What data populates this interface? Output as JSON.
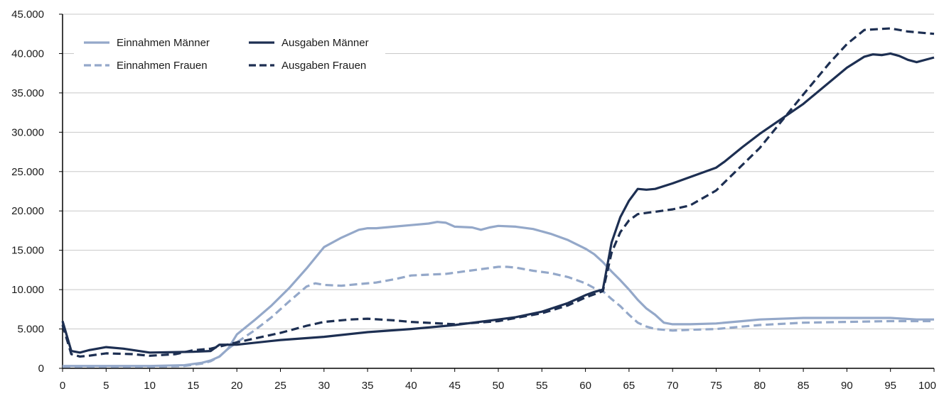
{
  "chart_data": {
    "type": "line",
    "title": "",
    "xlabel": "",
    "ylabel": "",
    "xlim": [
      0,
      100
    ],
    "ylim": [
      0,
      45000
    ],
    "grid": "horizontal",
    "legend_placement": "top-left",
    "x_ticks": [
      0,
      5,
      10,
      15,
      20,
      25,
      30,
      35,
      40,
      45,
      50,
      55,
      60,
      65,
      70,
      75,
      80,
      85,
      90,
      95,
      100
    ],
    "x_tick_labels": [
      "0",
      "5",
      "10",
      "15",
      "20",
      "25",
      "30",
      "35",
      "40",
      "45",
      "50",
      "55",
      "60",
      "65",
      "70",
      "75",
      "80",
      "85",
      "90",
      "95",
      "100"
    ],
    "y_ticks": [
      0,
      5000,
      10000,
      15000,
      20000,
      25000,
      30000,
      35000,
      40000,
      45000
    ],
    "y_tick_labels": [
      "0",
      "5.000",
      "10.000",
      "15.000",
      "20.000",
      "25.000",
      "30.000",
      "35.000",
      "40.000",
      "45.000"
    ],
    "series": [
      {
        "name": "Einnahmen Männer",
        "color": "#94a8c9",
        "dash": "solid",
        "x": [
          0,
          5,
          10,
          14,
          16,
          17,
          18,
          19,
          20,
          22,
          24,
          26,
          28,
          30,
          32,
          34,
          35,
          36,
          38,
          40,
          42,
          43,
          44,
          45,
          47,
          48,
          49,
          50,
          52,
          54,
          56,
          58,
          60,
          61,
          62,
          63,
          64,
          65,
          66,
          67,
          68,
          69,
          70,
          72,
          75,
          78,
          80,
          85,
          90,
          95,
          98,
          100
        ],
        "y": [
          300,
          300,
          300,
          400,
          700,
          1000,
          1500,
          2500,
          4300,
          6100,
          8000,
          10200,
          12700,
          15400,
          16600,
          17600,
          17800,
          17800,
          18000,
          18200,
          18400,
          18600,
          18500,
          18000,
          17900,
          17600,
          17900,
          18100,
          18000,
          17700,
          17100,
          16300,
          15200,
          14500,
          13500,
          12300,
          11200,
          10000,
          8700,
          7600,
          6800,
          5800,
          5600,
          5600,
          5700,
          6000,
          6200,
          6400,
          6400,
          6400,
          6200,
          6200
        ]
      },
      {
        "name": "Einnahmen Frauen",
        "color": "#94a8c9",
        "dash": "dashed",
        "x": [
          0,
          5,
          10,
          14,
          16,
          17,
          18,
          19,
          20,
          22,
          24,
          26,
          28,
          29,
          30,
          32,
          34,
          36,
          38,
          40,
          42,
          44,
          46,
          48,
          50,
          51,
          52,
          54,
          56,
          58,
          60,
          61,
          62,
          63,
          64,
          65,
          66,
          67,
          68,
          70,
          72,
          75,
          78,
          80,
          85,
          90,
          95,
          98,
          100
        ],
        "y": [
          200,
          200,
          200,
          300,
          600,
          900,
          1500,
          2500,
          3300,
          4800,
          6500,
          8500,
          10400,
          10800,
          10600,
          10500,
          10700,
          10900,
          11300,
          11800,
          11900,
          12000,
          12300,
          12600,
          12900,
          12900,
          12800,
          12400,
          12100,
          11600,
          10800,
          10200,
          9800,
          8800,
          7900,
          6800,
          5800,
          5300,
          5000,
          4800,
          4900,
          5000,
          5300,
          5500,
          5800,
          5900,
          6000,
          6000,
          6000
        ]
      },
      {
        "name": "Ausgaben Männer",
        "color": "#1d2f52",
        "dash": "solid",
        "x": [
          0,
          1,
          2,
          3,
          5,
          7,
          10,
          15,
          17,
          18,
          20,
          25,
          30,
          35,
          40,
          45,
          50,
          52,
          55,
          58,
          60,
          61,
          62,
          63,
          64,
          65,
          66,
          67,
          68,
          70,
          75,
          76,
          78,
          80,
          85,
          90,
          92,
          93,
          94,
          95,
          96,
          97,
          98,
          100
        ],
        "y": [
          6000,
          2200,
          2000,
          2300,
          2700,
          2500,
          2000,
          2100,
          2200,
          3000,
          3000,
          3600,
          4000,
          4600,
          5000,
          5500,
          6200,
          6500,
          7200,
          8300,
          9300,
          9700,
          10000,
          16000,
          19200,
          21300,
          22800,
          22700,
          22800,
          23500,
          25500,
          26300,
          28100,
          29800,
          33600,
          38200,
          39600,
          39900,
          39800,
          40000,
          39700,
          39200,
          38900,
          39500
        ]
      },
      {
        "name": "Ausgaben Frauen",
        "color": "#1d2f52",
        "dash": "dashed",
        "x": [
          0,
          1,
          2,
          3,
          5,
          8,
          10,
          13,
          15,
          17,
          20,
          25,
          28,
          30,
          33,
          35,
          38,
          40,
          45,
          50,
          55,
          58,
          60,
          62,
          63,
          64,
          65,
          66,
          70,
          72,
          75,
          80,
          85,
          88,
          90,
          92,
          95,
          97,
          100
        ],
        "y": [
          5500,
          1800,
          1500,
          1600,
          1900,
          1800,
          1600,
          1800,
          2300,
          2500,
          3300,
          4500,
          5400,
          5900,
          6200,
          6300,
          6100,
          5900,
          5600,
          6000,
          7000,
          8000,
          9000,
          9800,
          14700,
          17300,
          18800,
          19600,
          20200,
          20700,
          22600,
          28000,
          34800,
          38800,
          41200,
          43000,
          43200,
          42800,
          42500
        ]
      }
    ]
  }
}
